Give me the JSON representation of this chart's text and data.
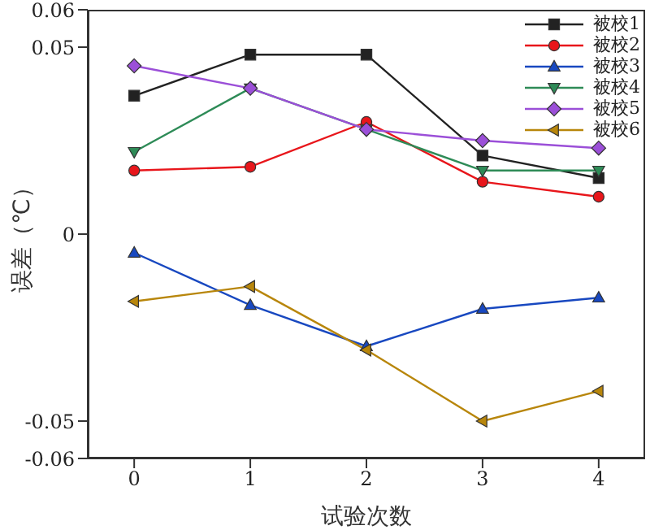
{
  "chart_data": {
    "type": "line",
    "xlabel": "试验次数",
    "ylabel": "误差（℃）",
    "x": [
      0,
      1,
      2,
      3,
      4
    ],
    "xlim": [
      -0.4,
      4.4
    ],
    "xticks": [
      0,
      1,
      2,
      3,
      4
    ],
    "ylim": [
      -0.06,
      0.06
    ],
    "yticks": [
      -0.06,
      -0.05,
      0,
      0.05,
      0.06
    ],
    "legend": "top right",
    "line_style": "solid",
    "series": [
      {
        "name": "被校1",
        "color": "#222222",
        "marker": "square",
        "values": [
          0.037,
          0.048,
          0.048,
          0.021,
          0.015
        ]
      },
      {
        "name": "被校2",
        "color": "#e8161b",
        "marker": "circle",
        "values": [
          0.017,
          0.018,
          0.03,
          0.014,
          0.01
        ]
      },
      {
        "name": "被校3",
        "color": "#1848c0",
        "marker": "triangle",
        "values": [
          -0.005,
          -0.019,
          -0.03,
          -0.02,
          -0.017
        ]
      },
      {
        "name": "被校4",
        "color": "#2e8b57",
        "marker": "triangle-down",
        "values": [
          0.022,
          0.039,
          0.028,
          0.017,
          0.017
        ]
      },
      {
        "name": "被校5",
        "color": "#9b4fd8",
        "marker": "diamond",
        "values": [
          0.045,
          0.039,
          0.028,
          0.025,
          0.023
        ]
      },
      {
        "name": "被校6",
        "color": "#b8860b",
        "marker": "triangle-left",
        "values": [
          -0.018,
          -0.014,
          -0.031,
          -0.05,
          -0.042
        ]
      }
    ]
  }
}
